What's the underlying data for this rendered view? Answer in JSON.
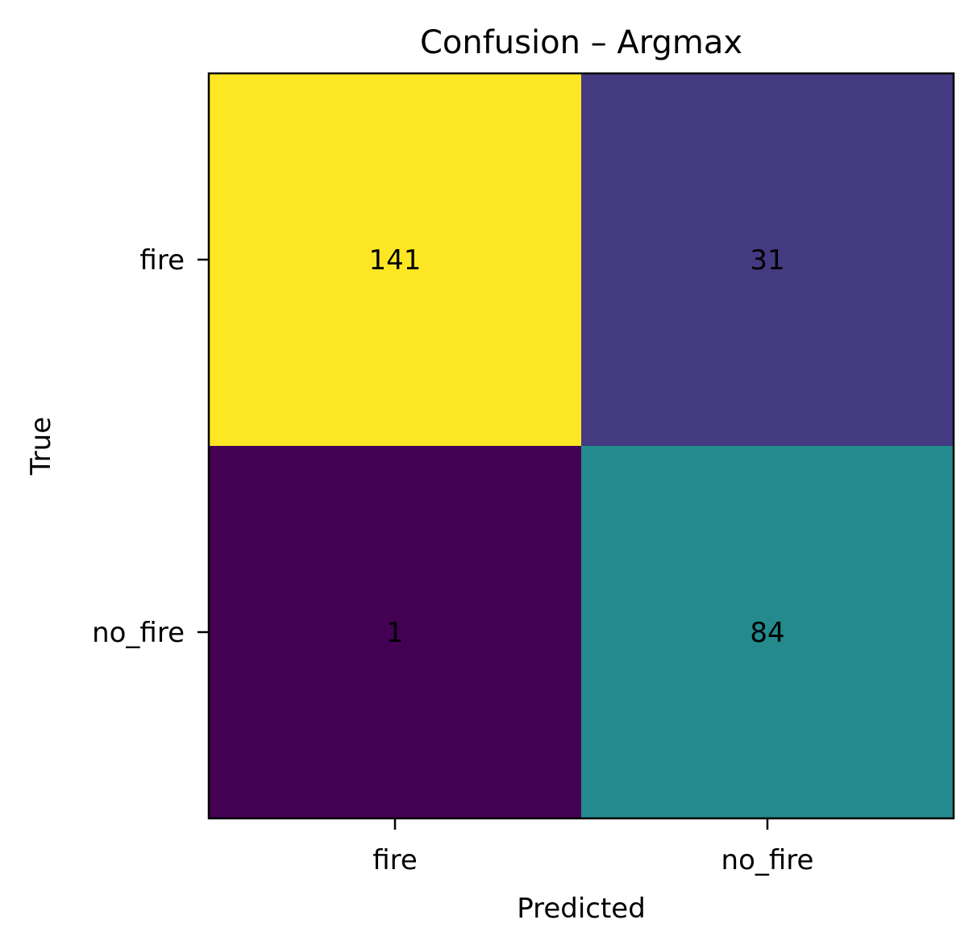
{
  "chart_data": {
    "type": "heatmap",
    "title": "Confusion – Argmax",
    "xlabel": "Predicted",
    "ylabel": "True",
    "x_categories": [
      "fire",
      "no_fire"
    ],
    "y_categories": [
      "fire",
      "no_fire"
    ],
    "values": [
      [
        141,
        31
      ],
      [
        1,
        84
      ]
    ],
    "colormap": "viridis",
    "value_range": [
      1,
      141
    ],
    "grid": false,
    "colorbar": false
  }
}
